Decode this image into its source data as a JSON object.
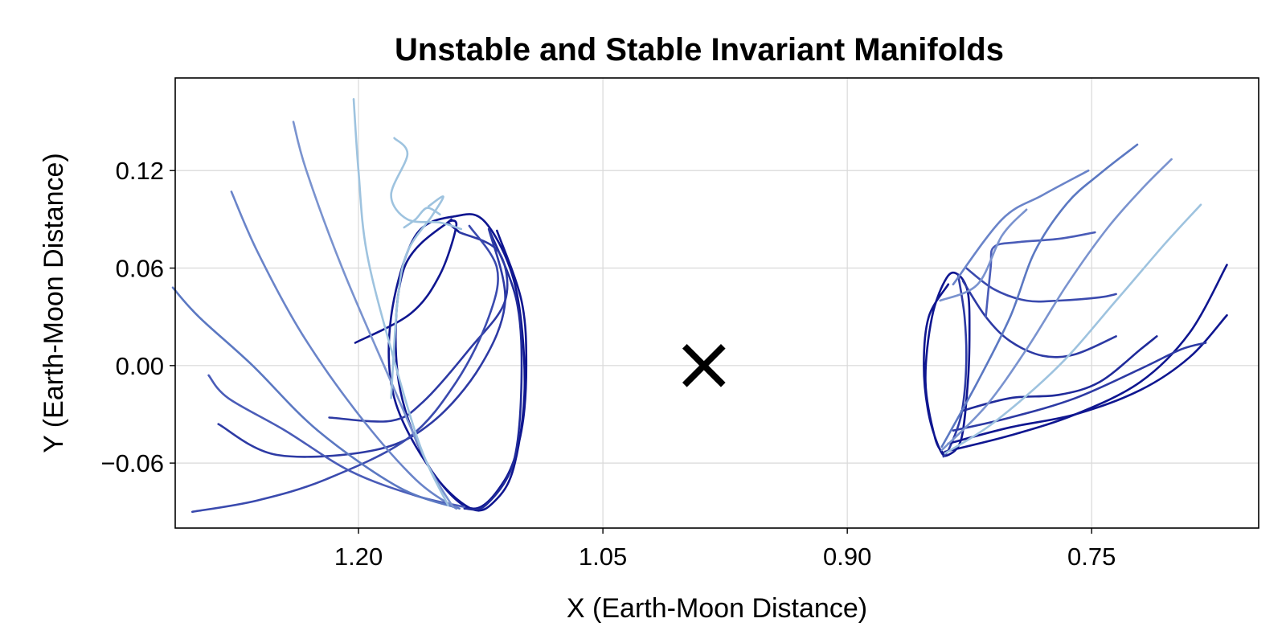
{
  "chart_data": {
    "type": "line",
    "title": "Unstable and Stable Invariant Manifolds",
    "xlabel": "X (Earth-Moon Distance)",
    "ylabel": "Y (Earth-Moon Distance)",
    "xlim": [
      1.3125,
      0.6475
    ],
    "ylim": [
      -0.1,
      0.177
    ],
    "x_reversed": true,
    "xticks": [
      1.2,
      1.05,
      0.9,
      0.75
    ],
    "xtick_labels": [
      "1.20",
      "1.05",
      "0.90",
      "0.75"
    ],
    "yticks": [
      -0.06,
      0.0,
      0.06,
      0.12
    ],
    "ytick_labels": [
      "−0.06",
      "0.00",
      "0.06",
      "0.12"
    ],
    "grid": true,
    "marker": {
      "label": "×",
      "x": 0.988,
      "y": 0.0,
      "color": "#000000"
    },
    "colors": {
      "light": "#9ec3df",
      "mid": "#5b78c2",
      "dark": "#0f1690"
    },
    "series": [
      {
        "color": "#0f1690",
        "points": [
          [
            1.202,
            0.014
          ],
          [
            1.168,
            0.032
          ],
          [
            1.15,
            0.056
          ],
          [
            1.14,
            0.086
          ],
          [
            1.145,
            0.088
          ],
          [
            1.138,
            0.082
          ]
        ]
      },
      {
        "color": "#0f1690",
        "points": [
          [
            1.115,
            0.083
          ],
          [
            1.1,
            0.04
          ],
          [
            1.097,
            0.0
          ],
          [
            1.1,
            -0.04
          ],
          [
            1.11,
            -0.07
          ],
          [
            1.13,
            -0.088
          ],
          [
            1.155,
            -0.065
          ],
          [
            1.178,
            -0.02
          ],
          [
            1.18,
            0.03
          ],
          [
            1.165,
            0.08
          ],
          [
            1.14,
            0.092
          ],
          [
            1.122,
            0.088
          ],
          [
            1.104,
            0.05
          ],
          [
            1.098,
            -0.01
          ],
          [
            1.104,
            -0.06
          ],
          [
            1.115,
            -0.082
          ],
          [
            1.131,
            -0.088
          ],
          [
            1.158,
            -0.06
          ],
          [
            1.176,
            -0.005
          ],
          [
            1.172,
            0.06
          ],
          [
            1.143,
            0.09
          ]
        ]
      },
      {
        "color": "#1f2a9a",
        "points": [
          [
            1.12,
            0.084
          ],
          [
            1.103,
            0.04
          ],
          [
            1.1,
            -0.01
          ],
          [
            1.105,
            -0.06
          ],
          [
            1.122,
            -0.086
          ],
          [
            1.135,
            -0.088
          ]
        ]
      },
      {
        "color": "#2d3aa4",
        "points": [
          [
            1.138,
            0.082
          ],
          [
            1.114,
            0.07
          ],
          [
            1.11,
            0.04
          ],
          [
            1.132,
            0.01
          ],
          [
            1.16,
            -0.022
          ],
          [
            1.18,
            -0.034
          ],
          [
            1.218,
            -0.032
          ]
        ]
      },
      {
        "color": "#2d3aa4",
        "points": [
          [
            1.12,
            0.084
          ],
          [
            1.11,
            0.04
          ],
          [
            1.125,
            0.0
          ],
          [
            1.155,
            -0.035
          ],
          [
            1.19,
            -0.052
          ],
          [
            1.25,
            -0.055
          ],
          [
            1.286,
            -0.036
          ]
        ]
      },
      {
        "color": "#3a4aae",
        "points": [
          [
            1.132,
            0.086
          ],
          [
            1.115,
            0.06
          ],
          [
            1.12,
            0.03
          ],
          [
            1.14,
            -0.01
          ],
          [
            1.17,
            -0.045
          ],
          [
            1.22,
            -0.07
          ],
          [
            1.262,
            -0.083
          ],
          [
            1.302,
            -0.09
          ]
        ]
      },
      {
        "color": "#4a5cb8",
        "points": [
          [
            1.135,
            -0.087
          ],
          [
            1.165,
            -0.08
          ],
          [
            1.205,
            -0.065
          ],
          [
            1.245,
            -0.04
          ],
          [
            1.28,
            -0.02
          ],
          [
            1.292,
            -0.006
          ]
        ]
      },
      {
        "color": "#5b78c2",
        "points": [
          [
            1.138,
            -0.088
          ],
          [
            1.175,
            -0.075
          ],
          [
            1.225,
            -0.04
          ],
          [
            1.265,
            0.0
          ],
          [
            1.298,
            0.03
          ],
          [
            1.314,
            0.048
          ]
        ]
      },
      {
        "color": "#6a84c9",
        "points": [
          [
            1.14,
            -0.088
          ],
          [
            1.165,
            -0.07
          ],
          [
            1.2,
            -0.03
          ],
          [
            1.235,
            0.02
          ],
          [
            1.262,
            0.07
          ],
          [
            1.278,
            0.107
          ]
        ]
      },
      {
        "color": "#7a93cf",
        "points": [
          [
            1.142,
            -0.087
          ],
          [
            1.158,
            -0.06
          ],
          [
            1.18,
            -0.01
          ],
          [
            1.21,
            0.06
          ],
          [
            1.232,
            0.12
          ],
          [
            1.24,
            0.15
          ]
        ]
      },
      {
        "color": "#9ec3df",
        "points": [
          [
            1.145,
            -0.086
          ],
          [
            1.162,
            -0.05
          ],
          [
            1.18,
            0.01
          ],
          [
            1.195,
            0.07
          ],
          [
            1.2,
            0.12
          ],
          [
            1.203,
            0.164
          ]
        ]
      },
      {
        "color": "#9ec3df",
        "points": [
          [
            1.137,
            0.084
          ],
          [
            1.15,
            0.088
          ],
          [
            1.17,
            0.09
          ],
          [
            1.18,
            0.105
          ],
          [
            1.17,
            0.13
          ],
          [
            1.178,
            0.14
          ]
        ]
      },
      {
        "color": "#9ec3df",
        "points": [
          [
            1.18,
            -0.02
          ],
          [
            1.176,
            0.04
          ],
          [
            1.17,
            0.07
          ],
          [
            1.155,
            0.092
          ],
          [
            1.148,
            0.104
          ],
          [
            1.157,
            0.098
          ]
        ]
      },
      {
        "color": "#9ec3df",
        "points": [
          [
            1.15,
            0.093
          ],
          [
            1.158,
            0.097
          ],
          [
            1.165,
            0.09
          ],
          [
            1.172,
            0.085
          ]
        ]
      },
      {
        "color": "#0f1690",
        "points": [
          [
            0.838,
            0.05
          ],
          [
            0.85,
            0.03
          ],
          [
            0.853,
            0.0
          ],
          [
            0.85,
            -0.03
          ],
          [
            0.843,
            -0.052
          ],
          [
            0.838,
            -0.055
          ],
          [
            0.83,
            -0.045
          ],
          [
            0.826,
            -0.01
          ],
          [
            0.825,
            0.02
          ],
          [
            0.826,
            0.045
          ],
          [
            0.832,
            0.056
          ],
          [
            0.839,
            0.054
          ],
          [
            0.848,
            0.03
          ],
          [
            0.852,
            -0.01
          ],
          [
            0.846,
            -0.045
          ],
          [
            0.84,
            -0.055
          ]
        ]
      },
      {
        "color": "#2d3aa4",
        "points": [
          [
            0.832,
            0.056
          ],
          [
            0.828,
            0.03
          ],
          [
            0.827,
            0.0
          ],
          [
            0.83,
            -0.03
          ],
          [
            0.837,
            -0.05
          ],
          [
            0.841,
            -0.056
          ]
        ]
      },
      {
        "color": "#0f1690",
        "points": [
          [
            0.84,
            -0.053
          ],
          [
            0.8,
            -0.043
          ],
          [
            0.76,
            -0.03
          ],
          [
            0.72,
            -0.01
          ],
          [
            0.69,
            0.02
          ],
          [
            0.667,
            0.062
          ]
        ]
      },
      {
        "color": "#0f1690",
        "points": [
          [
            0.838,
            -0.048
          ],
          [
            0.8,
            -0.038
          ],
          [
            0.76,
            -0.03
          ],
          [
            0.72,
            -0.015
          ],
          [
            0.69,
            0.005
          ],
          [
            0.667,
            0.031
          ]
        ]
      },
      {
        "color": "#2d3aa4",
        "points": [
          [
            0.835,
            -0.04
          ],
          [
            0.8,
            -0.032
          ],
          [
            0.76,
            -0.02
          ],
          [
            0.72,
            -0.002
          ],
          [
            0.695,
            0.01
          ],
          [
            0.68,
            0.014
          ]
        ]
      },
      {
        "color": "#1f2a9a",
        "points": [
          [
            0.83,
            -0.028
          ],
          [
            0.8,
            -0.02
          ],
          [
            0.77,
            -0.018
          ],
          [
            0.745,
            -0.01
          ],
          [
            0.72,
            0.01
          ],
          [
            0.71,
            0.018
          ]
        ]
      },
      {
        "color": "#2d3aa4",
        "points": [
          [
            0.829,
            0.052
          ],
          [
            0.815,
            0.03
          ],
          [
            0.8,
            0.015
          ],
          [
            0.78,
            0.006
          ],
          [
            0.76,
            0.007
          ],
          [
            0.735,
            0.018
          ]
        ]
      },
      {
        "color": "#3a4aae",
        "points": [
          [
            0.827,
            0.06
          ],
          [
            0.81,
            0.047
          ],
          [
            0.79,
            0.04
          ],
          [
            0.77,
            0.04
          ],
          [
            0.745,
            0.042
          ],
          [
            0.735,
            0.044
          ]
        ]
      },
      {
        "color": "#4a5cb8",
        "points": [
          [
            0.815,
            0.03
          ],
          [
            0.812,
            0.06
          ],
          [
            0.81,
            0.073
          ],
          [
            0.795,
            0.076
          ],
          [
            0.77,
            0.078
          ],
          [
            0.748,
            0.082
          ]
        ]
      },
      {
        "color": "#5b78c2",
        "points": [
          [
            0.842,
            -0.05
          ],
          [
            0.82,
            -0.01
          ],
          [
            0.8,
            0.03
          ],
          [
            0.785,
            0.07
          ],
          [
            0.765,
            0.1
          ],
          [
            0.745,
            0.118
          ],
          [
            0.722,
            0.136
          ]
        ]
      },
      {
        "color": "#7a93cf",
        "points": [
          [
            0.842,
            -0.052
          ],
          [
            0.815,
            -0.025
          ],
          [
            0.79,
            0.01
          ],
          [
            0.765,
            0.05
          ],
          [
            0.74,
            0.085
          ],
          [
            0.718,
            0.11
          ],
          [
            0.701,
            0.127
          ]
        ]
      },
      {
        "color": "#9ec3df",
        "points": [
          [
            0.84,
            -0.054
          ],
          [
            0.81,
            -0.035
          ],
          [
            0.77,
            0.0
          ],
          [
            0.735,
            0.04
          ],
          [
            0.705,
            0.075
          ],
          [
            0.683,
            0.099
          ]
        ]
      },
      {
        "color": "#6a84c9",
        "points": [
          [
            0.835,
            0.05
          ],
          [
            0.805,
            0.09
          ],
          [
            0.78,
            0.105
          ],
          [
            0.752,
            0.12
          ]
        ]
      },
      {
        "color": "#7a93cf",
        "points": [
          [
            0.843,
            0.04
          ],
          [
            0.82,
            0.05
          ],
          [
            0.805,
            0.08
          ],
          [
            0.79,
            0.096
          ]
        ]
      }
    ]
  }
}
